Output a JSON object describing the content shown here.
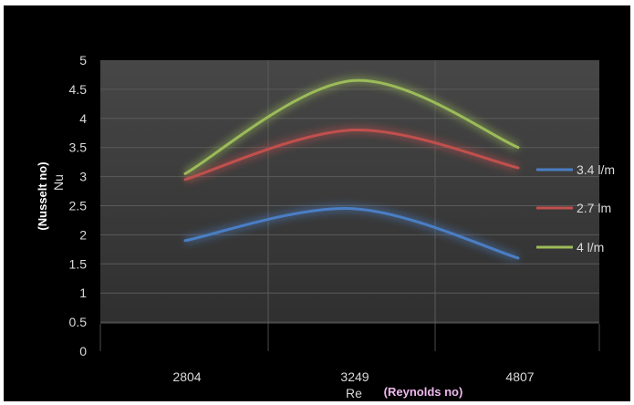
{
  "chart_data": {
    "type": "line",
    "categories": [
      "2804",
      "3249",
      "4807"
    ],
    "series": [
      {
        "name": "3.4 l/m",
        "values": [
          1.9,
          2.45,
          1.6
        ],
        "color": "#4a7ec4"
      },
      {
        "name": "2.7 lm",
        "values": [
          2.95,
          3.8,
          3.15
        ],
        "color": "#c0504d"
      },
      {
        "name": "4 l/m",
        "values": [
          3.05,
          4.65,
          3.5
        ],
        "color": "#9bbb59"
      }
    ],
    "title": "",
    "xlabel": "Re",
    "xlabel_note": "(Reynolds no)",
    "ylabel": "Nu",
    "ylabel_note": "(Nusselt no)",
    "ylim": [
      0,
      5
    ],
    "yticks": [
      "0",
      "0.5",
      "1",
      "1.5",
      "2",
      "2.5",
      "3",
      "3.5",
      "4",
      "4.5",
      "5"
    ],
    "grid": true,
    "legend": "right"
  }
}
